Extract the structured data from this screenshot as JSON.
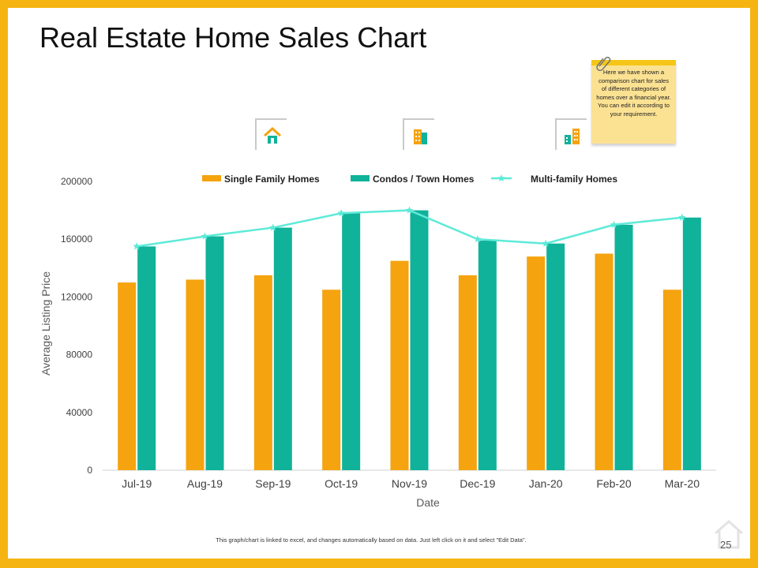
{
  "slide": {
    "title": "Real Estate Home Sales Chart",
    "note_text": "Here we have shown a comparison chart for sales of different categories of homes over a financial year. You can edit it according to your requirement.",
    "footnote": "This graph/chart is linked to excel, and changes automatically based on data. Just left click on it and select \"Edit Data\".",
    "page_number": "25"
  },
  "colors": {
    "frame": "#F5B411",
    "single": "#F5A30F",
    "condo": "#10B29A",
    "multi": "#5EEAD8",
    "note": "#FBE192",
    "note_band": "#F5C618"
  },
  "icons": [
    "house-icon",
    "condo-building-icon",
    "multi-family-buildings-icon",
    "paperclip-icon",
    "home-outline-icon"
  ],
  "chart_data": {
    "type": "bar",
    "categories": [
      "Jul-19",
      "Aug-19",
      "Sep-19",
      "Oct-19",
      "Nov-19",
      "Dec-19",
      "Jan-20",
      "Feb-20",
      "Mar-20"
    ],
    "series": [
      {
        "name": "Single Family Homes",
        "type": "bar",
        "values": [
          130000,
          132000,
          135000,
          125000,
          145000,
          135000,
          148000,
          150000,
          125000
        ]
      },
      {
        "name": "Condos / Town Homes",
        "type": "bar",
        "values": [
          155000,
          162000,
          168000,
          178000,
          180000,
          159000,
          157000,
          170000,
          175000
        ]
      },
      {
        "name": "Multi-family Homes",
        "type": "line",
        "values": [
          155000,
          162000,
          168000,
          178000,
          180000,
          160000,
          157000,
          170000,
          175000
        ]
      }
    ],
    "xlabel": "Date",
    "ylabel": "Average Listing Price",
    "ylim": [
      0,
      200000
    ],
    "yticks": [
      "0",
      "40000",
      "80000",
      "120000",
      "160000",
      "200000"
    ],
    "legend_position": "top"
  }
}
